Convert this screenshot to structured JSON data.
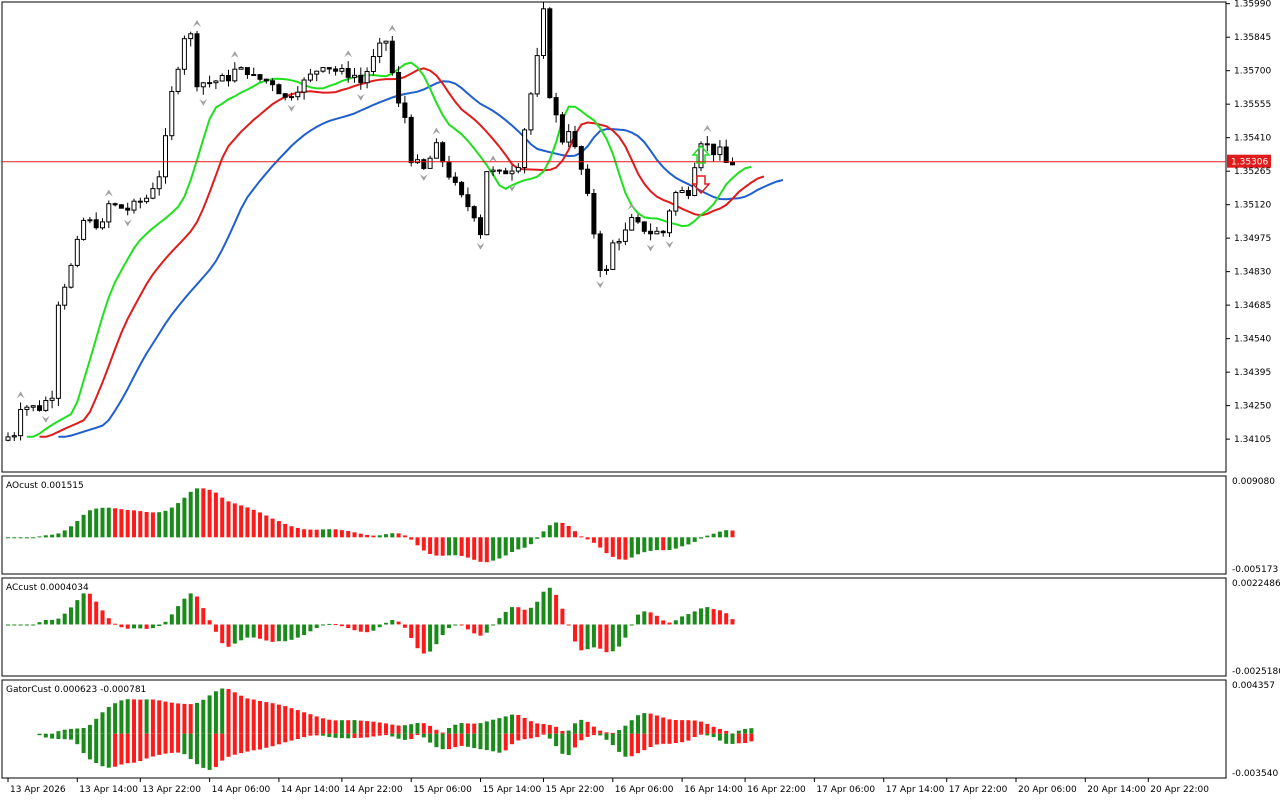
{
  "chart_data": {
    "type": "candlestick",
    "instrument_timeframe": "",
    "colors": {
      "background": "#ffffff",
      "frame": "#000000",
      "bull_candle": "#ffffff",
      "bear_candle": "#000000",
      "alligator_jaw": "#1f5fcf",
      "alligator_teeth": "#e01b1b",
      "alligator_lips": "#1fe01f",
      "histogram_green": "#1a8a1a",
      "histogram_red": "#ff1a1a",
      "price_line": "#e01b1b",
      "fractal": "#a0a0a0"
    },
    "main_panel": {
      "y_range": [
        1.3398,
        1.3598
      ],
      "y_ticks": [
        "1.35990",
        "1.35845",
        "1.35700",
        "1.35555",
        "1.35410",
        "1.35265",
        "1.35120",
        "1.34975",
        "1.34830",
        "1.34685",
        "1.34540",
        "1.34395",
        "1.34250",
        "1.34105"
      ],
      "current_price": "1.35306",
      "signal_arrows": [
        {
          "bar_index": 110,
          "direction": "up",
          "color": "#1fe01f"
        },
        {
          "bar_index": 110,
          "direction": "down",
          "color": "#e01b1b"
        }
      ],
      "series_names": [
        "Jaw",
        "Teeth",
        "Lips"
      ]
    },
    "candles_ohlc": [],
    "x_labels": [
      "13 Apr 2026",
      "13 Apr 14:00",
      "13 Apr 22:00",
      "14 Apr 06:00",
      "14 Apr 14:00",
      "14 Apr 22:00",
      "15 Apr 06:00",
      "15 Apr 14:00",
      "15 Apr 22:00",
      "16 Apr 06:00",
      "16 Apr 14:00",
      "16 Apr 22:00",
      "17 Apr 06:00",
      "17 Apr 14:00",
      "17 Apr 22:00",
      "20 Apr 06:00",
      "20 Apr 14:00",
      "20 Apr 22:00"
    ],
    "ao_panel": {
      "label": "AOcust 0.001515",
      "y_max_label": "0.009080",
      "y_min_label": "-0.005173",
      "y_range": [
        -0.005173,
        0.00908
      ]
    },
    "ac_panel": {
      "label": "ACcust 0.0004034",
      "y_max_label": "0.0022486",
      "y_min_label": "-0.0025180",
      "y_range": [
        -0.002518,
        0.0022486
      ]
    },
    "gator_panel": {
      "label": "GatorCust 0.000623 -0.000781",
      "y_max_label": "0.004357",
      "y_min_label": "-0.003540",
      "y_range": [
        -0.00354,
        0.004357
      ]
    }
  }
}
